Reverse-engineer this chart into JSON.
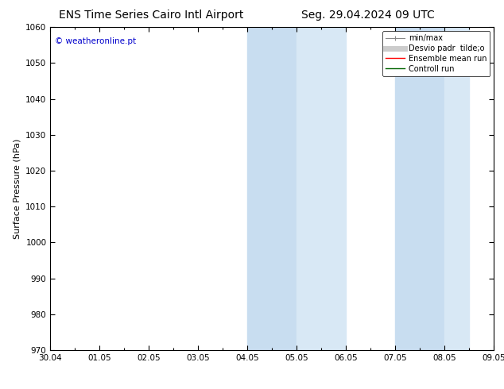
{
  "title_left": "ENS Time Series Cairo Intl Airport",
  "title_right": "Seg. 29.04.2024 09 UTC",
  "ylabel": "Surface Pressure (hPa)",
  "xlim_dates": [
    "30.04",
    "01.05",
    "02.05",
    "03.05",
    "04.05",
    "05.05",
    "06.05",
    "07.05",
    "08.05",
    "09.05"
  ],
  "xlim": [
    0,
    9
  ],
  "ylim": [
    970,
    1060
  ],
  "yticks": [
    970,
    980,
    990,
    1000,
    1010,
    1020,
    1030,
    1040,
    1050,
    1060
  ],
  "shaded_bands": [
    {
      "x_start": 4.0,
      "x_end": 5.0
    },
    {
      "x_start": 5.0,
      "x_end": 6.0
    },
    {
      "x_start": 7.0,
      "x_end": 8.0
    },
    {
      "x_start": 8.0,
      "x_end": 8.5
    }
  ],
  "shade_color_dark": "#c8ddf0",
  "shade_color_light": "#ddeaf8",
  "watermark_text": "© weatheronline.pt",
  "watermark_color": "#0000cc",
  "legend_items": [
    {
      "label": "min/max",
      "color": "#aaaaaa",
      "linestyle": "-",
      "linewidth": 1.0
    },
    {
      "label": "Desvio padr  tilde;o",
      "color": "#cccccc",
      "linestyle": "-",
      "linewidth": 5
    },
    {
      "label": "Ensemble mean run",
      "color": "red",
      "linestyle": "-",
      "linewidth": 1.0
    },
    {
      "label": "Controll run",
      "color": "green",
      "linestyle": "-",
      "linewidth": 1.0
    }
  ],
  "bg_color": "#ffffff",
  "plot_bg_color": "#ffffff",
  "title_fontsize": 10,
  "tick_fontsize": 7.5,
  "ylabel_fontsize": 8,
  "legend_fontsize": 7
}
